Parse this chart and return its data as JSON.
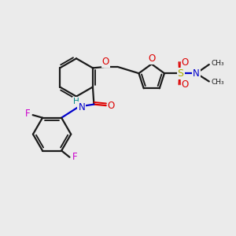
{
  "bg_color": "#ebebeb",
  "bond_color": "#1a1a1a",
  "bond_width": 1.6,
  "atoms": {
    "O_red": "#dd0000",
    "N_blue": "#0000cc",
    "F_magenta": "#cc00cc",
    "S_yellow": "#aaaa00",
    "H_teal": "#008888",
    "C_black": "#1a1a1a"
  },
  "xlim": [
    0,
    10
  ],
  "ylim": [
    0,
    10
  ]
}
